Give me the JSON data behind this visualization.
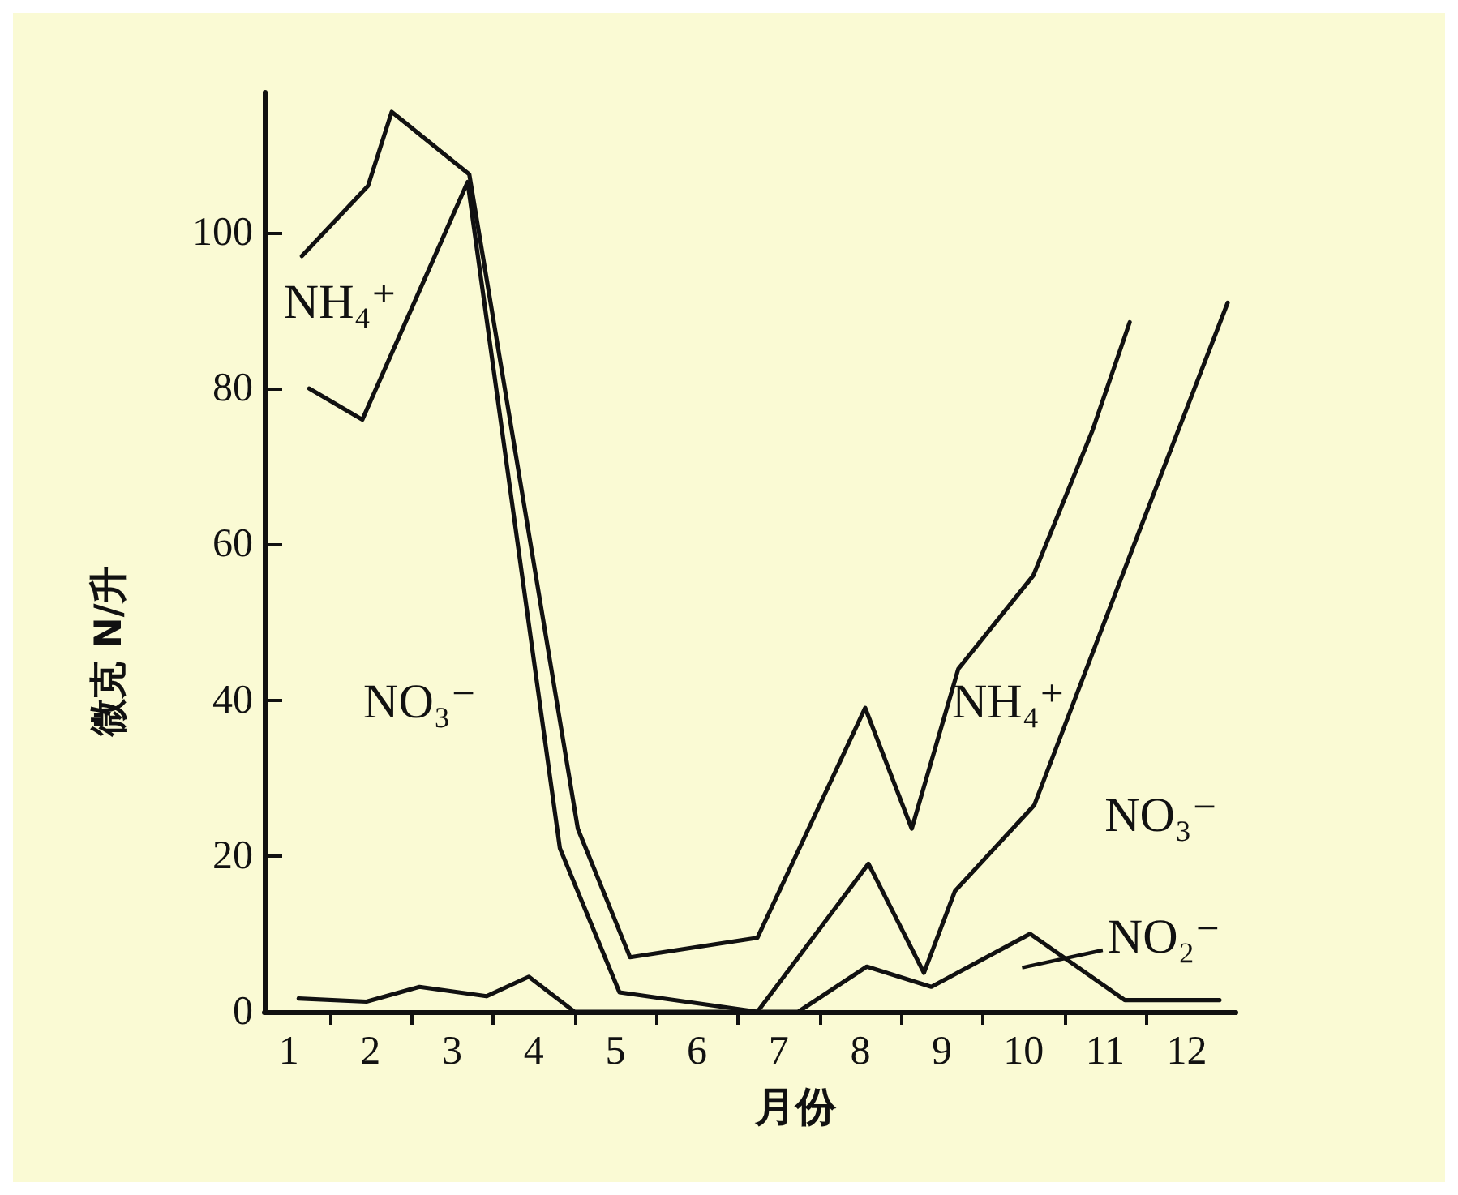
{
  "chart_data": {
    "type": "line",
    "xlabel": "月份",
    "ylabel": "微克 N/升",
    "xlim": [
      0.7,
      12.6
    ],
    "ylim": [
      0,
      118
    ],
    "xticks": [
      1,
      {
        "value": 1.5,
        "label": null
      },
      2,
      {
        "value": 2.5,
        "label": null
      },
      3,
      {
        "value": 3.5,
        "label": null
      },
      4,
      {
        "value": 4.5,
        "label": null
      },
      5,
      {
        "value": 5.5,
        "label": null
      },
      6,
      {
        "value": 6.5,
        "label": null
      },
      7,
      {
        "value": 7.5,
        "label": null
      },
      8,
      {
        "value": 8.5,
        "label": null
      },
      9,
      {
        "value": 9.5,
        "label": null
      },
      10,
      {
        "value": 10.5,
        "label": null
      },
      11,
      {
        "value": 11.5,
        "label": null
      },
      12
    ],
    "yticks": [
      0,
      20,
      40,
      60,
      80,
      100
    ],
    "marker": "none",
    "line_style": "solid",
    "series": [
      {
        "color": "#111111",
        "x": [
          1.16,
          1.97,
          2.26,
          3.21,
          4.54,
          5.18,
          6.74,
          8.06,
          8.63,
          9.2,
          10.12,
          10.84,
          11.3
        ],
        "values": [
          97,
          106,
          115.5,
          107.5,
          23.5,
          7,
          9.5,
          39,
          23.5,
          44,
          56,
          74.5,
          88.5
        ]
      },
      {
        "color": "#111111",
        "x": [
          1.25,
          1.9,
          3.19,
          4.32,
          5.05,
          6.74,
          8.1,
          8.78,
          9.16,
          10.13,
          11.41,
          12.5
        ],
        "values": [
          80,
          76,
          106.5,
          21,
          2.5,
          0,
          19,
          5,
          15.5,
          26.5,
          61.5,
          91
        ]
      },
      {
        "color": "#111111",
        "x": [
          1.12,
          1.95,
          2.6,
          3.42,
          3.94,
          4.5,
          7.24,
          8.08,
          8.87,
          10.08,
          11.24,
          12.4
        ],
        "values": [
          1.7,
          1.3,
          3.2,
          2,
          4.5,
          0,
          0,
          5.8,
          3.2,
          10,
          1.5,
          1.5
        ]
      }
    ],
    "annotations": [
      "NH₄⁺",
      "NO₃⁻",
      "NH₄⁺",
      "NO₃⁻",
      "NO₂⁻"
    ]
  }
}
